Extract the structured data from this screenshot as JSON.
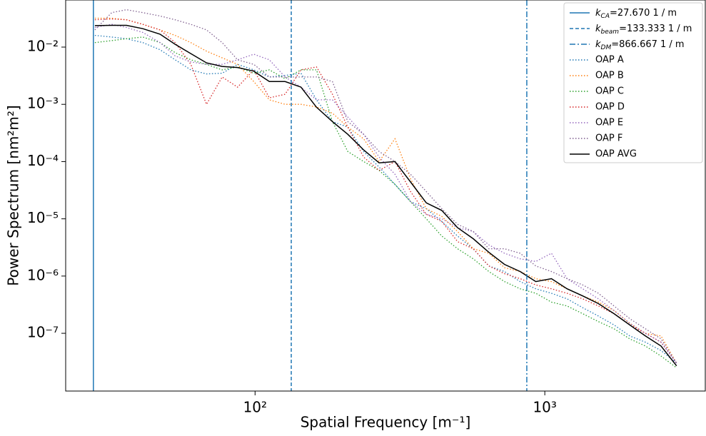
{
  "chart_data": {
    "type": "line",
    "xlabel": "Spatial Frequency [m⁻¹]",
    "ylabel": "Power Spectrum [nm²m²]",
    "xscale": "log",
    "yscale": "log",
    "xlim": [
      22.2,
      3580
    ],
    "ylim": [
      9.8e-09,
      0.0665
    ],
    "xticks": [
      {
        "value": 100,
        "label": "10²"
      },
      {
        "value": 1000,
        "label": "10³"
      }
    ],
    "yticks": [
      {
        "value": 1e-07,
        "label": "10⁻⁷"
      },
      {
        "value": 1e-06,
        "label": "10⁻⁶"
      },
      {
        "value": 1e-05,
        "label": "10⁻⁵"
      },
      {
        "value": 0.0001,
        "label": "10⁻⁴"
      },
      {
        "value": 0.001,
        "label": "10⁻³"
      },
      {
        "value": 0.01,
        "label": "10⁻²"
      }
    ],
    "legend": "upper right",
    "vlines": [
      {
        "x": 27.67,
        "symbol": "k",
        "subscript": "CA",
        "label": "=27.670 1 / m",
        "color": "#1f77b4",
        "style": "solid"
      },
      {
        "x": 133.333,
        "symbol": "k",
        "subscript": "beam",
        "label": "=133.333 1 / m",
        "color": "#1f77b4",
        "style": "dashed"
      },
      {
        "x": 866.667,
        "symbol": "k",
        "subscript": "DM",
        "label": "=866.667 1 / m",
        "color": "#1f77b4",
        "style": "dashdot"
      }
    ],
    "x": [
      28,
      32,
      36,
      41,
      47,
      53,
      60,
      68,
      77,
      87,
      99,
      112,
      127,
      144,
      163,
      185,
      209,
      237,
      268,
      304,
      344,
      390,
      441,
      500,
      566,
      641,
      726,
      822,
      931,
      1054,
      1194,
      1352,
      1531,
      1734,
      1964,
      2224,
      2519,
      2850
    ],
    "series": [
      {
        "name": "OAP A",
        "color": "#1f77b4",
        "style": "dotted",
        "values": [
          0.016,
          0.015,
          0.014,
          0.012,
          0.009,
          0.006,
          0.004,
          0.0034,
          0.0035,
          0.005,
          0.004,
          0.003,
          0.0032,
          0.0035,
          0.0012,
          0.0005,
          0.0004,
          0.00015,
          8e-05,
          4e-05,
          2e-05,
          1.5e-05,
          9e-06,
          5e-06,
          3e-06,
          1.5e-06,
          1.2e-06,
          8e-07,
          6e-07,
          5e-07,
          4e-07,
          2.8e-07,
          2e-07,
          1.4e-07,
          9e-08,
          7e-08,
          5e-08,
          3e-08
        ]
      },
      {
        "name": "OAP B",
        "color": "#ff7f0e",
        "style": "dotted",
        "values": [
          0.032,
          0.032,
          0.03,
          0.025,
          0.02,
          0.016,
          0.012,
          0.0085,
          0.0065,
          0.005,
          0.0025,
          0.0012,
          0.001,
          0.001,
          0.0009,
          0.0007,
          0.0004,
          0.00025,
          0.0001,
          0.00025,
          5e-05,
          1.5e-05,
          1.1e-05,
          6e-06,
          3e-06,
          2.5e-06,
          1.4e-06,
          1.2e-06,
          9e-07,
          8e-07,
          6e-07,
          4.5e-07,
          3.5e-07,
          2.5e-07,
          1.5e-07,
          1e-07,
          9e-08,
          3e-08
        ]
      },
      {
        "name": "OAP C",
        "color": "#2ca02c",
        "style": "dotted",
        "values": [
          0.012,
          0.013,
          0.014,
          0.015,
          0.012,
          0.008,
          0.006,
          0.005,
          0.004,
          0.0045,
          0.0035,
          0.004,
          0.0028,
          0.004,
          0.004,
          0.0005,
          0.00015,
          0.0001,
          7e-05,
          4e-05,
          2e-05,
          1e-05,
          5e-06,
          3e-06,
          2e-06,
          1.2e-06,
          8e-07,
          6e-07,
          5e-07,
          3.5e-07,
          3e-07,
          2.2e-07,
          1.6e-07,
          1.2e-07,
          8e-08,
          6e-08,
          4e-08,
          2.5e-08
        ]
      },
      {
        "name": "OAP D",
        "color": "#d62728",
        "style": "dotted",
        "values": [
          0.03,
          0.031,
          0.03,
          0.025,
          0.02,
          0.012,
          0.005,
          0.001,
          0.003,
          0.002,
          0.004,
          0.0013,
          0.0015,
          0.004,
          0.0045,
          0.0015,
          0.0004,
          0.00012,
          7e-05,
          0.0001,
          3e-05,
          1.2e-05,
          9e-06,
          4e-06,
          3e-06,
          1.5e-06,
          1.1e-06,
          9e-07,
          7e-07,
          6e-07,
          5e-07,
          4e-07,
          3e-07,
          2.2e-07,
          1.4e-07,
          1e-07,
          7e-08,
          3e-08
        ]
      },
      {
        "name": "OAP E",
        "color": "#9467bd",
        "style": "dotted",
        "values": [
          0.022,
          0.025,
          0.022,
          0.018,
          0.012,
          0.007,
          0.0055,
          0.005,
          0.005,
          0.006,
          0.0075,
          0.006,
          0.003,
          0.002,
          0.0012,
          0.0012,
          0.0006,
          0.0003,
          0.00012,
          6e-05,
          2e-05,
          1.2e-05,
          1e-05,
          7e-06,
          6e-06,
          3.5e-06,
          2.5e-06,
          2e-06,
          1.8e-06,
          2.5e-06,
          9e-07,
          6e-07,
          4e-07,
          2.5e-07,
          1.5e-07,
          1e-07,
          7e-08,
          3e-08
        ]
      },
      {
        "name": "OAP F",
        "color": "#7f5f8f",
        "style": "dotted",
        "values": [
          0.02,
          0.04,
          0.045,
          0.04,
          0.035,
          0.03,
          0.025,
          0.02,
          0.012,
          0.006,
          0.005,
          0.003,
          0.003,
          0.003,
          0.003,
          0.0025,
          0.0005,
          0.0003,
          0.00015,
          0.0001,
          6e-05,
          3e-05,
          1.5e-05,
          8e-06,
          6e-06,
          3e-06,
          3e-06,
          2.5e-06,
          1.5e-06,
          1.2e-06,
          9e-07,
          7e-07,
          5e-07,
          3e-07,
          1.8e-07,
          1.2e-07,
          8e-08,
          3e-08
        ]
      },
      {
        "name": "OAP AVG",
        "color": "#000000",
        "style": "solid",
        "values": [
          0.0237,
          0.024,
          0.024,
          0.021,
          0.0168,
          0.0112,
          0.0077,
          0.0053,
          0.0046,
          0.0044,
          0.0038,
          0.0025,
          0.0025,
          0.002,
          0.00089,
          0.0005,
          0.0003,
          0.00016,
          9.5e-05,
          0.0001,
          4.4e-05,
          1.9e-05,
          1.4e-05,
          7e-06,
          4.5e-06,
          2.6e-06,
          1.6e-06,
          1.2e-06,
          8e-07,
          9e-07,
          6e-07,
          4.5e-07,
          3.3e-07,
          2.2e-07,
          1.4e-07,
          9e-08,
          6e-08,
          2.7e-08
        ]
      }
    ]
  }
}
